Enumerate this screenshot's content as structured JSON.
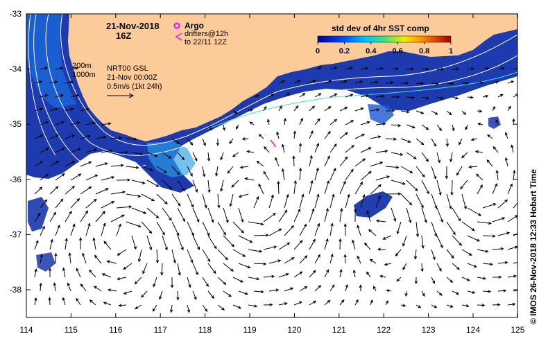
{
  "header": {
    "date": "21-Nov-2018",
    "time": "16Z"
  },
  "legend": {
    "argo_label": "Argo",
    "drifters_label": "drifters@12h",
    "drifters_to": "to 22/11 12Z",
    "contour_200": "200m",
    "contour_1000": "1000m",
    "current_product": "NRT00 GSL",
    "current_time": "21-Nov 00:00Z",
    "arrow_scale": "0.5m/s (1kt 24h)"
  },
  "colorbar": {
    "title": "std dev of 4hr SST comp",
    "ticks": [
      "0",
      "0.2",
      "0.4",
      "0.6",
      "0.8",
      "1"
    ]
  },
  "axes": {
    "lon_ticks": [
      "114",
      "115",
      "116",
      "117",
      "118",
      "119",
      "120",
      "121",
      "122",
      "123",
      "124",
      "125"
    ],
    "lat_ticks": [
      "-33",
      "-34",
      "-35",
      "-36",
      "-37",
      "-38"
    ]
  },
  "credit": "© IMOS 26-Nov-2018 12:33 Hobart Time",
  "colors": {
    "land": "#fbcc99",
    "argo": "#ff00ff",
    "contour": "#ffffff",
    "contour_2": "#40e0e0",
    "arrow": "#000000"
  }
}
